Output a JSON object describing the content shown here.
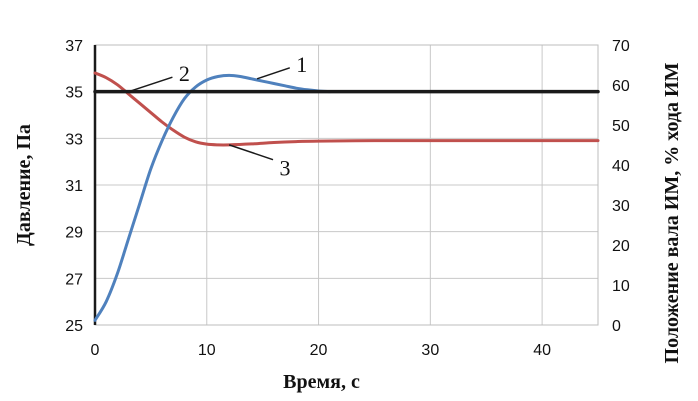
{
  "chart_data": {
    "type": "line",
    "xlabel": "Время, с",
    "ylabel_left": "Давление, Па",
    "ylabel_right": "Положение вала ИМ, % хода ИМ",
    "xlim": [
      0,
      45
    ],
    "ylim_left": [
      25,
      37
    ],
    "ylim_right": [
      0,
      70
    ],
    "x_ticks": [
      0,
      10,
      20,
      30,
      40
    ],
    "y_ticks_left": [
      25,
      27,
      29,
      31,
      33,
      35,
      37
    ],
    "y_ticks_right": [
      0,
      10,
      20,
      30,
      40,
      50,
      60,
      70
    ],
    "grid": true,
    "series": [
      {
        "name": "1",
        "axis": "left",
        "color": "#4f81bd",
        "x": [
          0,
          1,
          2,
          3,
          4,
          5,
          6,
          7,
          8,
          9,
          10,
          11,
          12,
          13,
          14,
          15,
          16,
          17,
          18,
          19,
          20,
          21
        ],
        "y": [
          25.2,
          26.0,
          27.2,
          28.7,
          30.2,
          31.7,
          32.9,
          33.9,
          34.7,
          35.2,
          35.5,
          35.65,
          35.7,
          35.65,
          35.55,
          35.45,
          35.35,
          35.25,
          35.15,
          35.08,
          35.03,
          35.0
        ]
      },
      {
        "name": "2",
        "axis": "left",
        "color": "#1a1a1a",
        "x": [
          0,
          45
        ],
        "y": [
          35.0,
          35.0
        ]
      },
      {
        "name": "3",
        "axis": "left",
        "color": "#c0504d",
        "x": [
          0,
          1,
          2,
          3,
          4,
          5,
          6,
          7,
          8,
          9,
          10,
          11,
          12,
          14,
          16,
          18,
          20,
          25,
          30,
          35,
          40,
          45
        ],
        "y": [
          35.8,
          35.6,
          35.3,
          34.9,
          34.5,
          34.1,
          33.7,
          33.35,
          33.05,
          32.85,
          32.75,
          32.72,
          32.72,
          32.76,
          32.82,
          32.86,
          32.88,
          32.9,
          32.9,
          32.9,
          32.9,
          32.9
        ]
      }
    ],
    "annotations": [
      {
        "label": "1",
        "text_x": 18.5,
        "text_y": 35.85,
        "arrow_to_x": 14.5,
        "arrow_to_y": 35.55
      },
      {
        "label": "2",
        "text_x": 8.0,
        "text_y": 35.45,
        "arrow_to_x": 3.0,
        "arrow_to_y": 35.0
      },
      {
        "label": "3",
        "text_x": 17.0,
        "text_y": 31.4,
        "arrow_to_x": 12.0,
        "arrow_to_y": 32.72
      }
    ]
  }
}
